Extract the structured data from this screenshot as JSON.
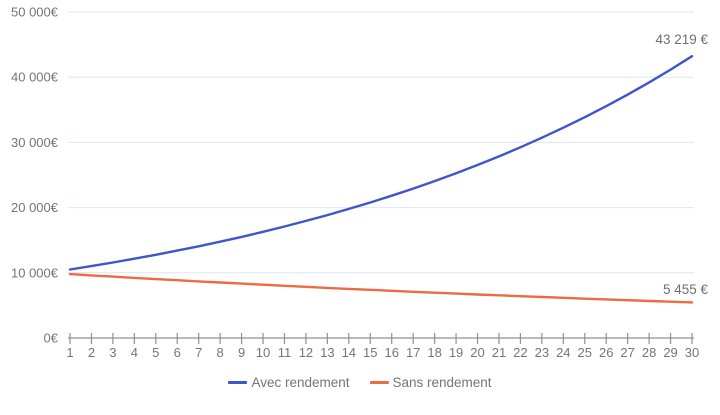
{
  "chart_data": {
    "type": "line",
    "title": "",
    "xlabel": "",
    "ylabel": "",
    "grid": "horizontal",
    "legend_position": "bottom",
    "x": [
      1,
      2,
      3,
      4,
      5,
      6,
      7,
      8,
      9,
      10,
      11,
      12,
      13,
      14,
      15,
      16,
      17,
      18,
      19,
      20,
      21,
      22,
      23,
      24,
      25,
      26,
      27,
      28,
      29,
      30
    ],
    "x_axis": {
      "labels": [
        "1",
        "2",
        "3",
        "4",
        "5",
        "6",
        "7",
        "8",
        "9",
        "10",
        "11",
        "12",
        "13",
        "14",
        "15",
        "16",
        "17",
        "18",
        "19",
        "20",
        "21",
        "22",
        "23",
        "24",
        "25",
        "26",
        "27",
        "28",
        "29",
        "30"
      ]
    },
    "y_axis": {
      "min": 0,
      "max": 50000,
      "ticks": [
        {
          "label": "0€",
          "value": 0
        },
        {
          "label": "10 000€",
          "value": 10000
        },
        {
          "label": "20 000€",
          "value": 20000
        },
        {
          "label": "30 000€",
          "value": 30000
        },
        {
          "label": "40 000€",
          "value": 40000
        },
        {
          "label": "50 000€",
          "value": 50000
        }
      ]
    },
    "series": [
      {
        "name": "Avec rendement",
        "color": "#3E55CB",
        "end_label": "43 219 €",
        "values": [
          10500,
          11025,
          11576,
          12155,
          12763,
          13401,
          14071,
          14775,
          15513,
          16289,
          17103,
          17959,
          18856,
          19799,
          20789,
          21829,
          22920,
          24066,
          25270,
          26533,
          27860,
          29253,
          30715,
          32251,
          33864,
          35557,
          37335,
          39201,
          41161,
          43219
        ]
      },
      {
        "name": "Sans rendement",
        "color": "#ED6A45",
        "end_label": "5 455 €",
        "values": [
          9800,
          9604,
          9412,
          9224,
          9039,
          8858,
          8681,
          8508,
          8337,
          8171,
          8007,
          7847,
          7690,
          7536,
          7386,
          7238,
          7093,
          6951,
          6812,
          6676,
          6543,
          6412,
          6283,
          6158,
          6035,
          5914,
          5796,
          5680,
          5566,
          5455
        ]
      }
    ]
  },
  "styles": {
    "grid_color": "#dde6f4",
    "axis_color": "#909090",
    "label_color": "#757575",
    "data_label_color": "#6f6f6f",
    "background": "#ffffff"
  }
}
